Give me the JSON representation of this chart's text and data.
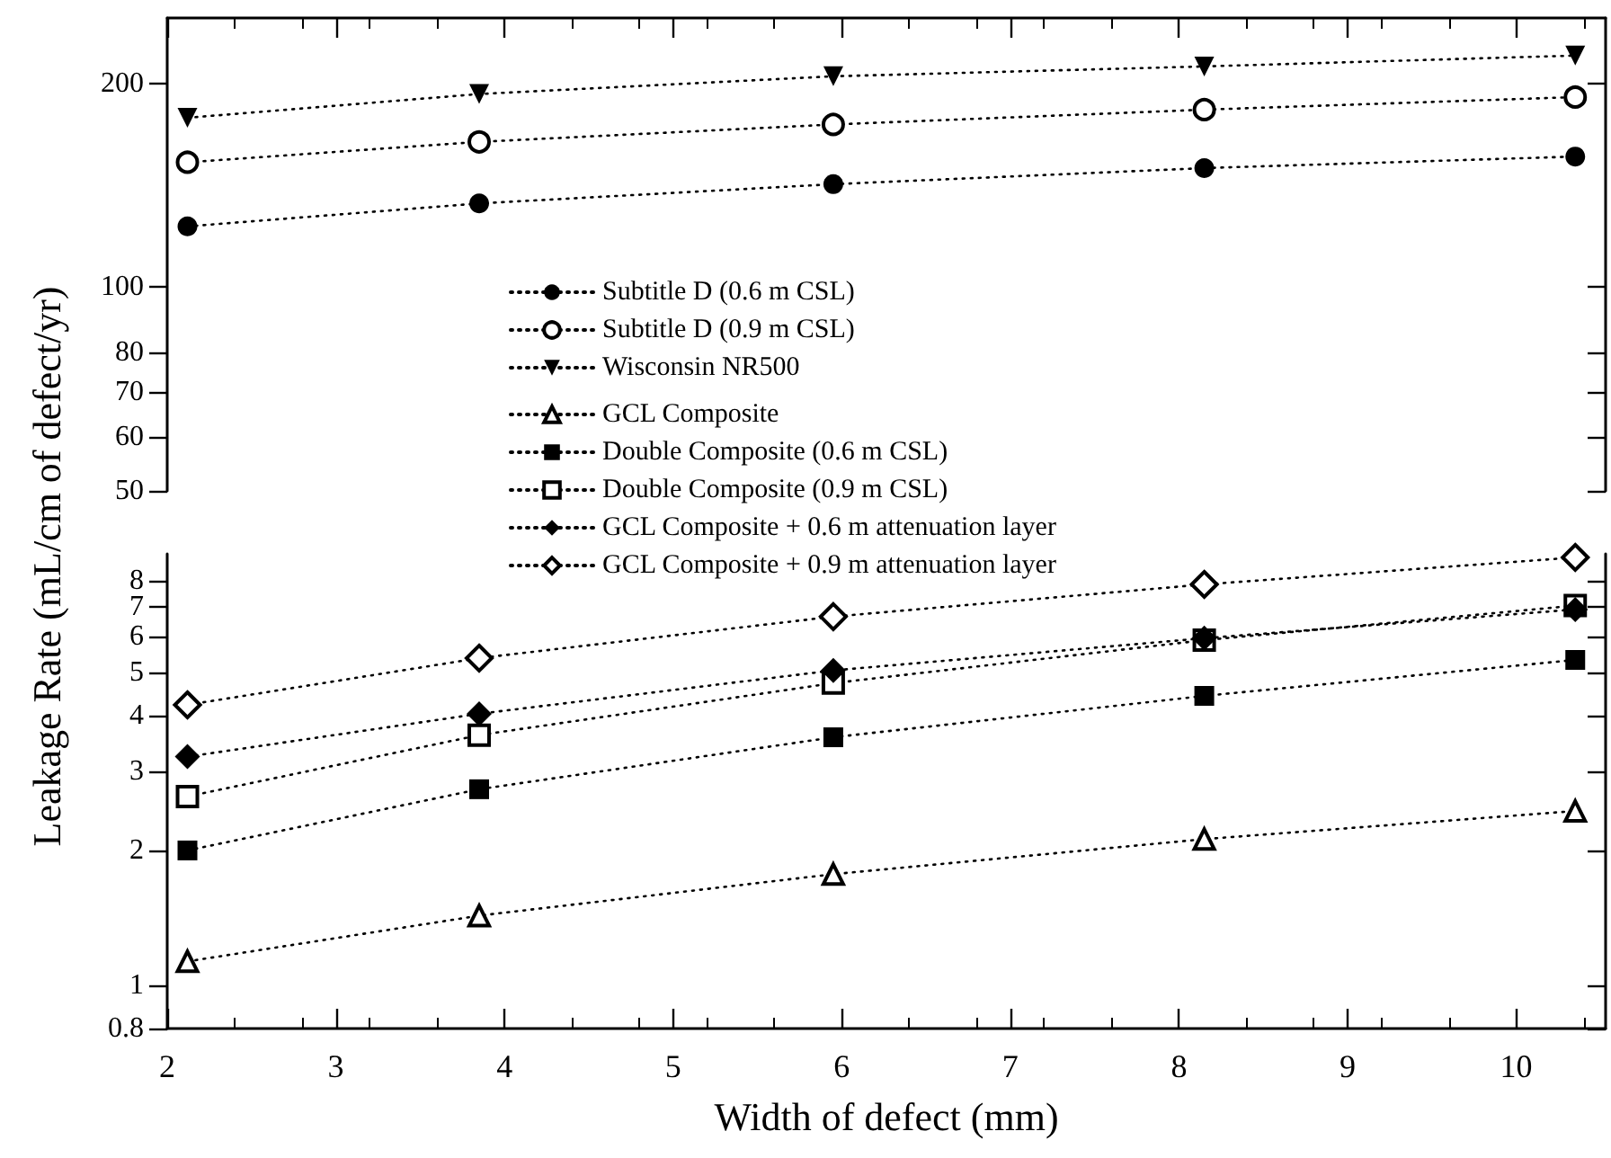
{
  "chart_data": [
    {
      "type": "line",
      "ylabel": "Leakage Rate (mL/cm of defect/yr)",
      "log": "y",
      "grid": false,
      "legend": "bottom",
      "tick_labels": "y",
      "line_style": "dotted",
      "xlim": [
        2,
        10.53
      ],
      "xticks": [
        2,
        3,
        4,
        5,
        6,
        7,
        8,
        9,
        10
      ],
      "ylim": [
        50,
        250
      ],
      "yticks": [
        50,
        60,
        70,
        80,
        100,
        200
      ],
      "series": [
        {
          "name": "Subtitle D (0.6 m CSL)",
          "color": "#000000",
          "marker": "circle",
          "x": [
            2.12,
            3.85,
            5.95,
            8.15,
            10.35
          ],
          "values": [
            123,
            133,
            142,
            150,
            156
          ]
        },
        {
          "name": "Subtitle D (0.9 m CSL)",
          "color": "#000000",
          "marker": "circle-open",
          "x": [
            2.12,
            3.85,
            5.95,
            8.15,
            10.35
          ],
          "values": [
            153,
            164,
            174,
            183,
            191
          ]
        },
        {
          "name": "Wisconsin NR500",
          "color": "#000000",
          "marker": "triangle-down",
          "x": [
            2.12,
            3.85,
            5.95,
            8.15,
            10.35
          ],
          "values": [
            178,
            193,
            205,
            212,
            220
          ]
        }
      ]
    },
    {
      "type": "line",
      "xlabel": "Width of defect (mm)",
      "log": "y",
      "grid": false,
      "legend": "top",
      "line_style": "dotted",
      "xlim": [
        2,
        10.53
      ],
      "xticks": [
        2,
        3,
        4,
        5,
        6,
        7,
        8,
        9,
        10
      ],
      "ylim": [
        0.8,
        9.2
      ],
      "yticks": [
        0.8,
        1,
        2,
        3,
        4,
        5,
        6,
        7,
        8
      ],
      "series": [
        {
          "name": "GCL Composite",
          "color": "#000000",
          "marker": "triangle-open",
          "x": [
            2.12,
            3.85,
            5.95,
            8.15,
            10.35
          ],
          "values": [
            1.13,
            1.43,
            1.77,
            2.12,
            2.45
          ]
        },
        {
          "name": "Double Composite (0.6 m CSL)",
          "color": "#000000",
          "marker": "square",
          "x": [
            2.12,
            3.85,
            5.95,
            8.15,
            10.35
          ],
          "values": [
            2.0,
            2.74,
            3.58,
            4.43,
            5.33
          ]
        },
        {
          "name": "Double Composite (0.9 m CSL)",
          "color": "#000000",
          "marker": "square-open",
          "x": [
            2.12,
            3.85,
            5.95,
            8.15,
            10.35
          ],
          "values": [
            2.64,
            3.62,
            4.73,
            5.9,
            7.05
          ]
        },
        {
          "name": "GCL Composite + 0.6 m attenuation layer",
          "color": "#000000",
          "marker": "diamond",
          "x": [
            2.12,
            3.85,
            5.95,
            8.15,
            10.35
          ],
          "values": [
            3.24,
            4.04,
            5.05,
            5.96,
            6.91
          ]
        },
        {
          "name": "GCL Composite + 0.9 m attenuation layer",
          "color": "#000000",
          "marker": "diamond-open",
          "x": [
            2.12,
            3.85,
            5.95,
            8.15,
            10.35
          ],
          "values": [
            4.23,
            5.38,
            6.66,
            7.86,
            9.03
          ]
        }
      ]
    }
  ]
}
